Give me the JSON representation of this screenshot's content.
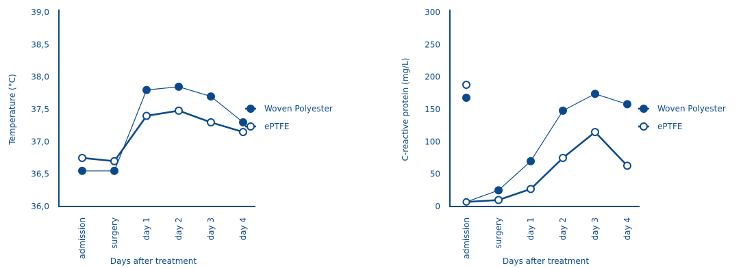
{
  "colors": {
    "primary": "#0a4a8c",
    "marker_open_fill": "#ffffff"
  },
  "chart_data": [
    {
      "type": "line",
      "title": "",
      "xlabel": "Days after treatment",
      "ylabel": "Temperature (°C)",
      "categories": [
        "admission",
        "surgery",
        "day 1",
        "day 2",
        "day 3",
        "day 4"
      ],
      "ylim": [
        36.0,
        39.0
      ],
      "yticks": [
        "36,0",
        "36,5",
        "37,0",
        "37,5",
        "38,0",
        "38,5",
        "39,0"
      ],
      "ytick_values": [
        36.0,
        36.5,
        37.0,
        37.5,
        38.0,
        38.5,
        39.0
      ],
      "grid": false,
      "legend_position": "right",
      "series": [
        {
          "name": "Woven Polyester",
          "marker": "filled",
          "line": "thin",
          "values": [
            36.55,
            36.55,
            37.8,
            37.85,
            37.7,
            37.3
          ]
        },
        {
          "name": "ePTFE",
          "marker": "open",
          "line": "thick",
          "values": [
            36.75,
            36.7,
            37.4,
            37.48,
            37.3,
            37.15
          ]
        }
      ]
    },
    {
      "type": "line",
      "title": "",
      "xlabel": "Days after treatment",
      "ylabel": "C-reactive protein (mg/L)",
      "categories": [
        "admission",
        "surgery",
        "day 1",
        "day 2",
        "day 3",
        "day 4"
      ],
      "ylim": [
        0,
        300
      ],
      "yticks": [
        "0",
        "50",
        "100",
        "150",
        "200",
        "250",
        "300"
      ],
      "ytick_values": [
        0,
        50,
        100,
        150,
        200,
        250,
        300
      ],
      "grid": false,
      "legend_position": "right",
      "series": [
        {
          "name": "Woven Polyester",
          "marker": "filled",
          "line": "thin",
          "values": [
            168,
            25,
            70,
            148,
            174,
            158
          ],
          "unconnected_points": [
            0
          ],
          "line_start_value": 7
        },
        {
          "name": "ePTFE",
          "marker": "open",
          "line": "thick",
          "values": [
            188,
            10,
            27,
            75,
            115,
            63
          ],
          "unconnected_points": [
            0
          ],
          "line_start_value": 7
        }
      ]
    }
  ]
}
